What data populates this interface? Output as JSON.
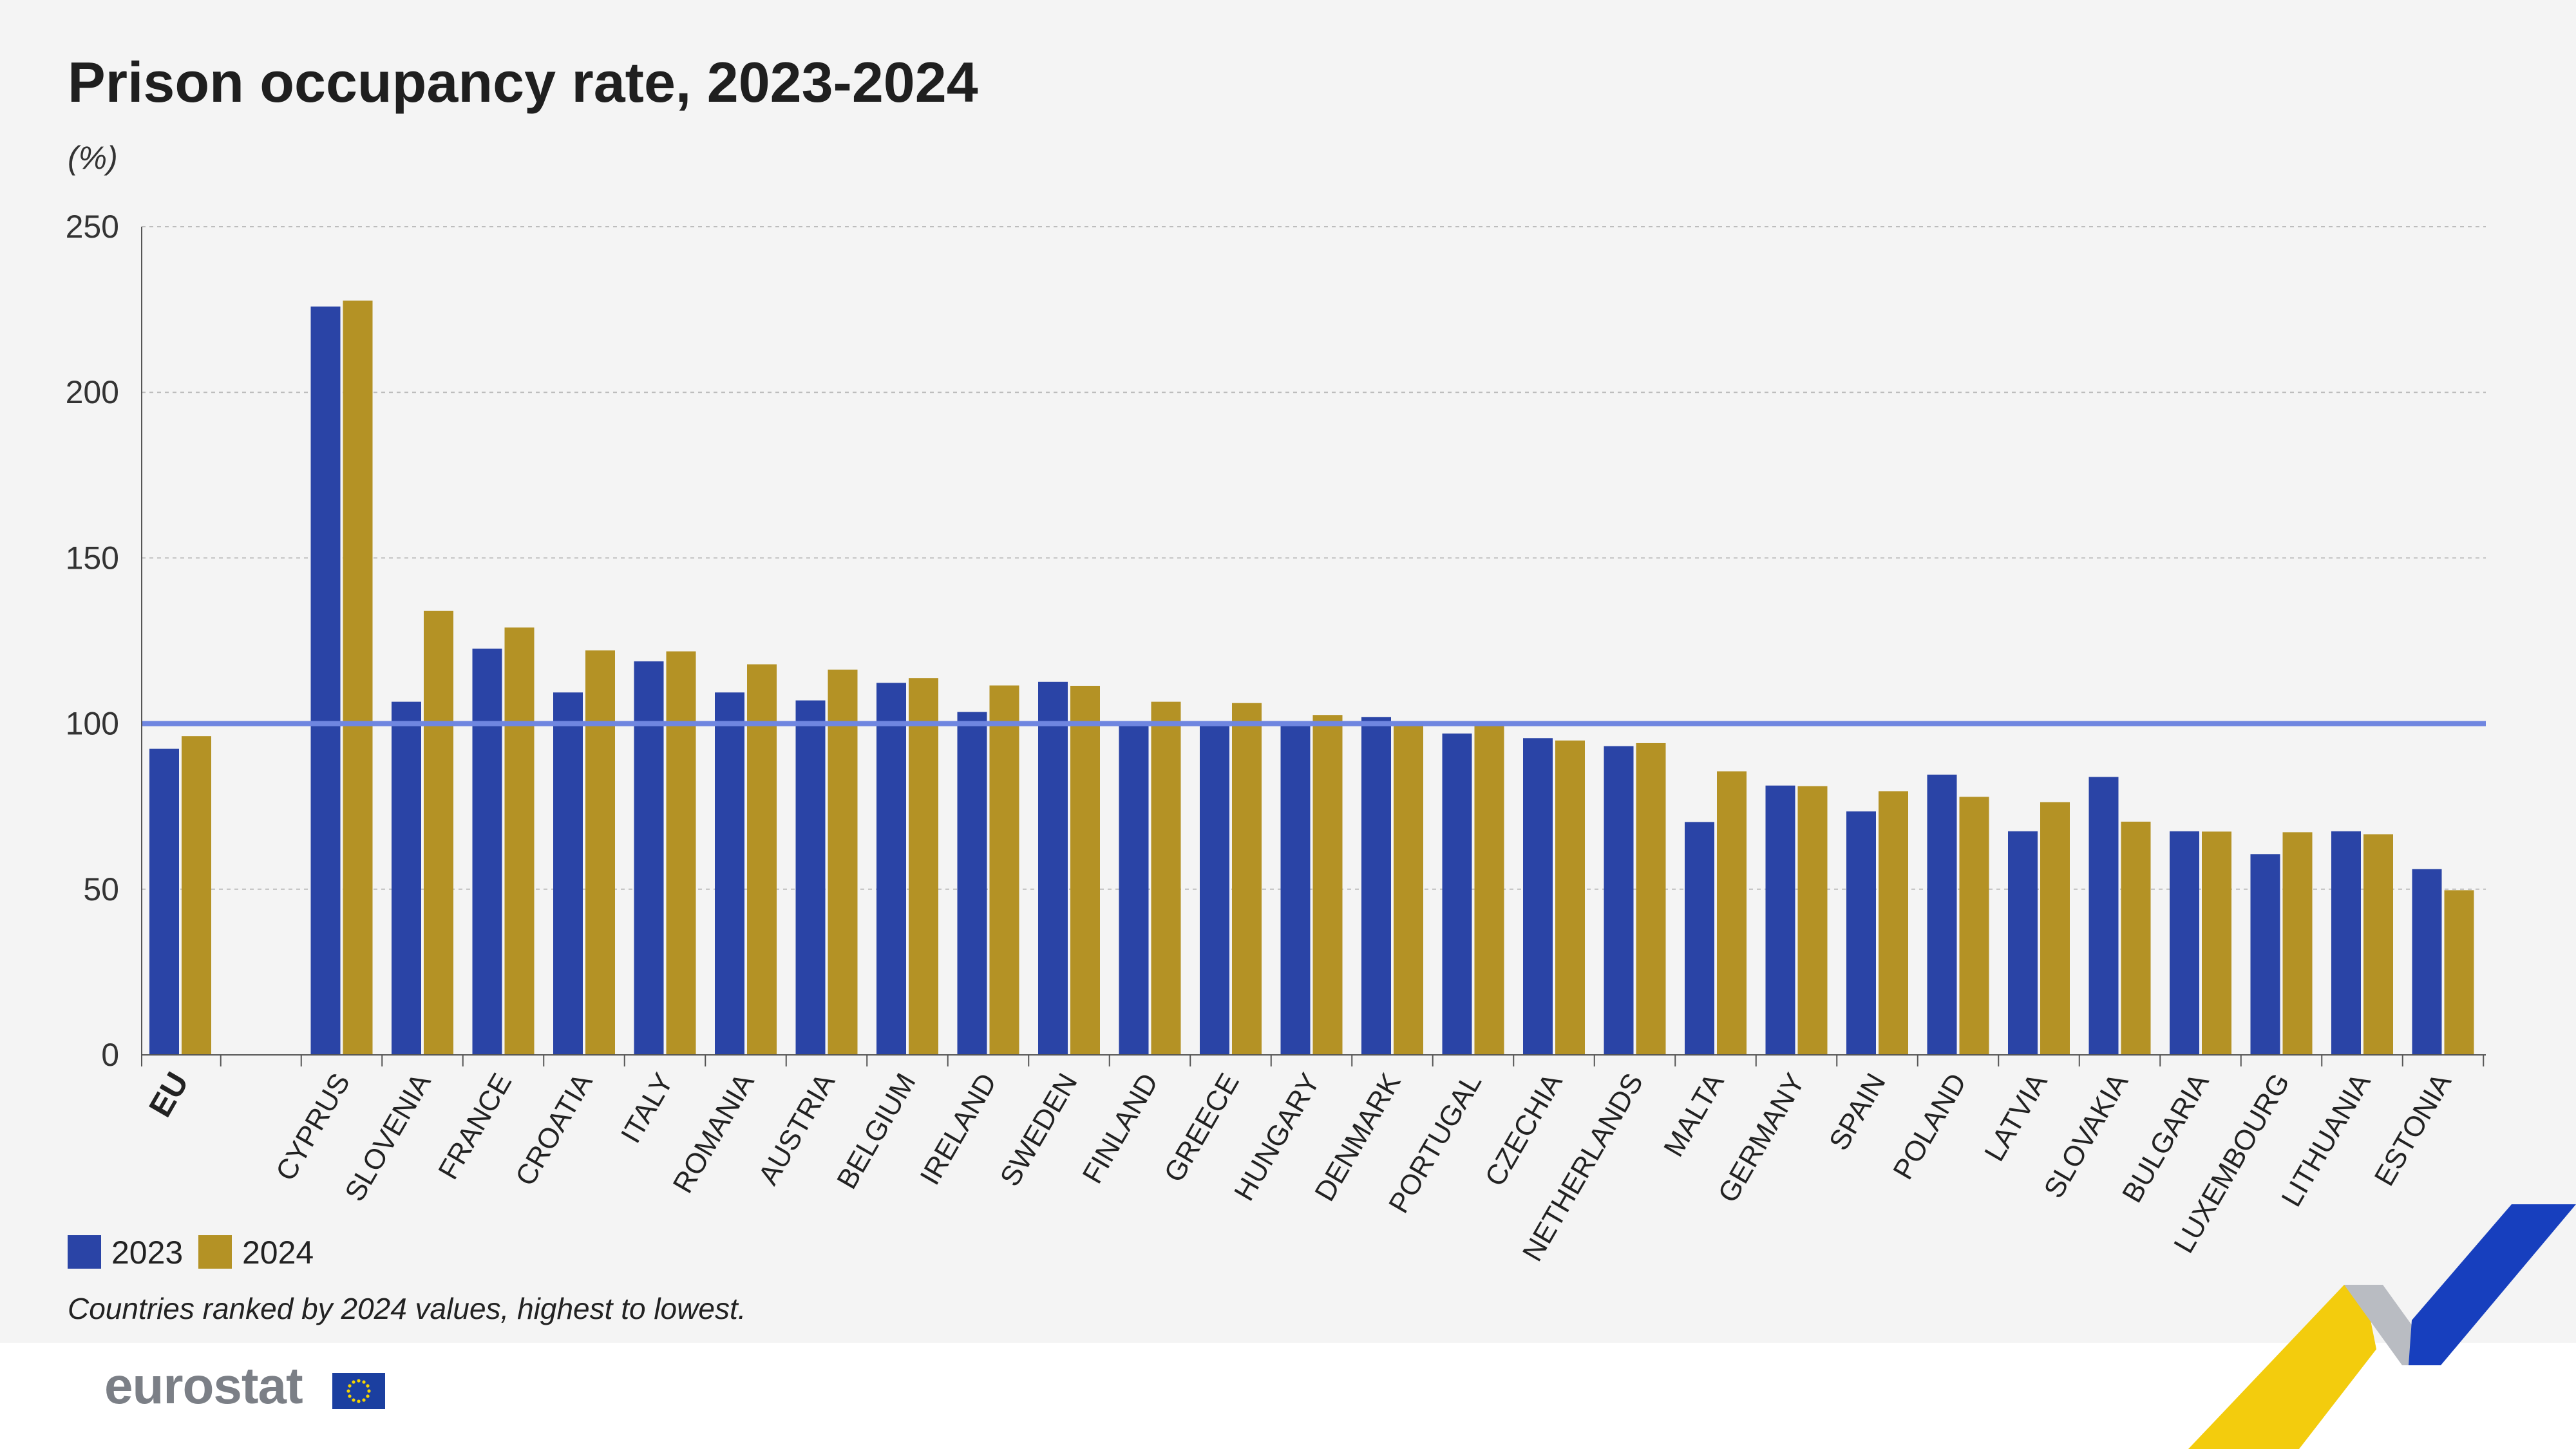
{
  "chart_data": {
    "type": "bar",
    "title": "Prison occupancy rate, 2023-2024",
    "unit": "(%)",
    "categories": [
      "EU",
      "CYPRUS",
      "SLOVENIA",
      "FRANCE",
      "CROATIA",
      "ITALY",
      "ROMANIA",
      "AUSTRIA",
      "BELGIUM",
      "IRELAND",
      "SWEDEN",
      "FINLAND",
      "GREECE",
      "HUNGARY",
      "DENMARK",
      "PORTUGAL",
      "CZECHIA",
      "NETHERLANDS",
      "MALTA",
      "GERMANY",
      "SPAIN",
      "POLAND",
      "LATVIA",
      "SLOVAKIA",
      "BULGARIA",
      "LUXEMBOURG",
      "LITHUANIA",
      "ESTONIA"
    ],
    "series": [
      {
        "name": "2023",
        "color": "#2a44a6",
        "values": [
          92.4,
          225.9,
          106.6,
          122.6,
          109.4,
          118.8,
          109.4,
          107.0,
          112.3,
          103.5,
          112.6,
          100.0,
          99.5,
          99.8,
          102.0,
          97.0,
          95.6,
          93.2,
          70.3,
          81.3,
          73.5,
          84.6,
          67.5,
          83.9,
          67.5,
          60.6,
          67.5,
          56.1
        ]
      },
      {
        "name": "2024",
        "color": "#b49225",
        "values": [
          96.2,
          227.7,
          134.0,
          129.0,
          122.1,
          121.8,
          117.9,
          116.3,
          113.7,
          111.5,
          111.4,
          106.6,
          106.2,
          102.6,
          100.0,
          99.3,
          94.9,
          94.1,
          85.6,
          81.1,
          79.6,
          77.9,
          76.3,
          70.4,
          67.4,
          67.2,
          66.6,
          49.7
        ]
      }
    ],
    "highlight_categories": [
      "EU"
    ],
    "ylim": [
      0,
      250
    ],
    "yticks": [
      0,
      50,
      100,
      150,
      200,
      250
    ],
    "reference_line": {
      "value": 100,
      "color": "#6f86e0"
    },
    "grid": true,
    "legend_position": "bottom-left",
    "note": "Countries ranked by 2024 values, highest to lowest."
  },
  "footer": {
    "logo_text": "eurostat"
  }
}
